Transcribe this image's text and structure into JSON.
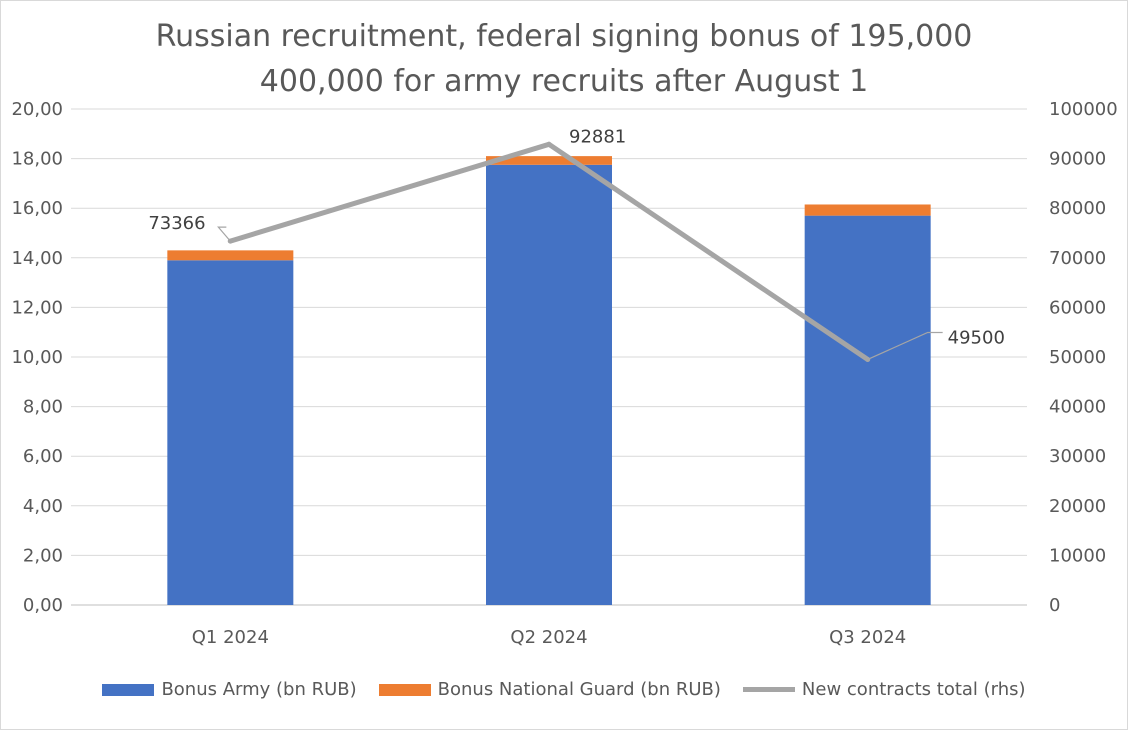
{
  "chart_data": {
    "type": "bar",
    "title_lines": [
      "Russian recruitment, federal signing bonus of 195,000",
      "400,000 for army recruits after August 1"
    ],
    "categories": [
      "Q1 2024",
      "Q2 2024",
      "Q3 2024"
    ],
    "series": [
      {
        "name": "Bonus Army (bn RUB)",
        "type": "bar",
        "stack": "bonus",
        "axis": "left",
        "color": "#4472C4",
        "values": [
          13.9,
          17.75,
          15.7
        ]
      },
      {
        "name": "Bonus National Guard (bn RUB)",
        "type": "bar",
        "stack": "bonus",
        "axis": "left",
        "color": "#ED7D31",
        "values": [
          0.4,
          0.35,
          0.45
        ]
      },
      {
        "name": "New contracts total (rhs)",
        "type": "line",
        "axis": "right",
        "color": "#A5A5A5",
        "values": [
          73366,
          92881,
          49500
        ]
      }
    ],
    "data_labels": [
      "73366",
      "92881",
      "49500"
    ],
    "y_left": {
      "min": 0,
      "max": 20,
      "step": 2,
      "tick_labels": [
        "0,00",
        "2,00",
        "4,00",
        "6,00",
        "8,00",
        "10,00",
        "12,00",
        "14,00",
        "16,00",
        "18,00",
        "20,00"
      ]
    },
    "y_right": {
      "min": 0,
      "max": 100000,
      "step": 10000,
      "tick_labels": [
        "0",
        "10000",
        "20000",
        "30000",
        "40000",
        "50000",
        "60000",
        "70000",
        "80000",
        "90000",
        "100000"
      ]
    },
    "grid": true,
    "legend_position": "bottom"
  }
}
